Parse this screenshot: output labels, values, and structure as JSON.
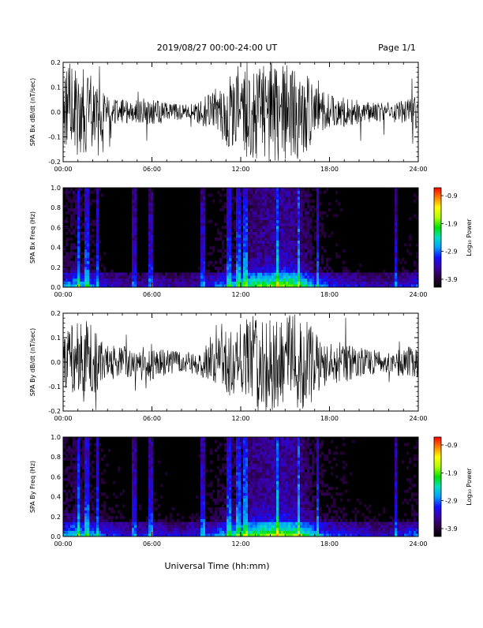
{
  "header": {
    "date_range": "2019/08/27  00:00-24:00 UT",
    "page": "Page 1/1"
  },
  "x_axis_title": "Universal Time (hh:mm)",
  "colors": {
    "trace": "#000000",
    "spectrogram_background": "#000000",
    "colorbar_stops": [
      "#000000",
      "#2a0040",
      "#3a00a8",
      "#1010ff",
      "#00a0ff",
      "#00e0c0",
      "#00e000",
      "#b0ff00",
      "#ffff00",
      "#ff8000",
      "#ff0000"
    ]
  },
  "chart_data": [
    {
      "type": "line",
      "ylabel": "SPA Bx dB/dt (nT/sec)",
      "ylim": [
        -0.2,
        0.2
      ],
      "yticks": [
        "0.2",
        "0.1",
        "0.0",
        "-0.1",
        "-0.2"
      ],
      "xlim": [
        "00:00",
        "24:00"
      ],
      "xticks": [
        "00:00",
        "06:00",
        "12:00",
        "18:00",
        "24:00"
      ],
      "x_hours": [
        0,
        1,
        2,
        3,
        4,
        5,
        6,
        7,
        8,
        9,
        10,
        11,
        12,
        13,
        14,
        15,
        16,
        17,
        18,
        19,
        20,
        21,
        22,
        23,
        24
      ],
      "amplitude_envelope": [
        0.2,
        0.2,
        0.14,
        0.06,
        0.05,
        0.04,
        0.06,
        0.04,
        0.03,
        0.04,
        0.08,
        0.13,
        0.2,
        0.2,
        0.2,
        0.2,
        0.2,
        0.12,
        0.07,
        0.06,
        0.05,
        0.04,
        0.04,
        0.05,
        0.07
      ],
      "series": [
        {
          "values": "dB/dt time series, clipped at ±0.2"
        }
      ]
    },
    {
      "type": "heatmap",
      "ylabel": "SPA Bx Freq (Hz)",
      "ylim": [
        0.0,
        1.0
      ],
      "yticks": [
        "1.0",
        "0.8",
        "0.6",
        "0.4",
        "0.2",
        "0.0"
      ],
      "xlim": [
        "00:00",
        "24:00"
      ],
      "xticks": [
        "00:00",
        "06:00",
        "12:00",
        "18:00",
        "24:00"
      ],
      "colorbar": {
        "label": "Log₁₀ Power",
        "ticks": [
          "-0.9",
          "-1.9",
          "-2.9",
          "-3.9"
        ],
        "range": [
          -3.9,
          -0.9
        ]
      },
      "x_hours": [
        0,
        1,
        2,
        3,
        4,
        5,
        6,
        7,
        8,
        9,
        10,
        11,
        12,
        13,
        14,
        15,
        16,
        17,
        18,
        19,
        20,
        21,
        22,
        23,
        24
      ],
      "low_freq_log_power": [
        -2.6,
        -2.4,
        -2.7,
        -3.1,
        -3.2,
        -3.3,
        -3.1,
        -3.2,
        -3.3,
        -3.2,
        -2.9,
        -2.6,
        -2.3,
        -1.9,
        -1.8,
        -1.6,
        -1.9,
        -2.6,
        -2.9,
        -3.0,
        -3.1,
        -3.2,
        -3.2,
        -3.0,
        -2.8
      ]
    },
    {
      "type": "line",
      "ylabel": "SPA By dB/dt (nT/sec)",
      "ylim": [
        -0.2,
        0.2
      ],
      "yticks": [
        "0.2",
        "0.1",
        "0.0",
        "-0.1",
        "-0.2"
      ],
      "xlim": [
        "00:00",
        "24:00"
      ],
      "xticks": [
        "00:00",
        "06:00",
        "12:00",
        "18:00",
        "24:00"
      ],
      "x_hours": [
        0,
        1,
        2,
        3,
        4,
        5,
        6,
        7,
        8,
        9,
        10,
        11,
        12,
        13,
        14,
        15,
        16,
        17,
        18,
        19,
        20,
        21,
        22,
        23,
        24
      ],
      "amplitude_envelope": [
        0.1,
        0.2,
        0.15,
        0.07,
        0.07,
        0.05,
        0.08,
        0.05,
        0.04,
        0.05,
        0.08,
        0.13,
        0.16,
        0.2,
        0.2,
        0.2,
        0.2,
        0.13,
        0.09,
        0.08,
        0.06,
        0.05,
        0.05,
        0.06,
        0.07
      ],
      "series": [
        {
          "values": "dB/dt time series, clipped at ±0.2"
        }
      ]
    },
    {
      "type": "heatmap",
      "ylabel": "SPA By Freq (Hz)",
      "ylim": [
        0.0,
        1.0
      ],
      "yticks": [
        "1.0",
        "0.8",
        "0.6",
        "0.4",
        "0.2",
        "0.0"
      ],
      "xlim": [
        "00:00",
        "24:00"
      ],
      "xticks": [
        "00:00",
        "06:00",
        "12:00",
        "18:00",
        "24:00"
      ],
      "colorbar": {
        "label": "Log₁₀ Power",
        "ticks": [
          "-0.9",
          "-1.9",
          "-2.9",
          "-3.9"
        ],
        "range": [
          -3.9,
          -0.9
        ]
      },
      "x_hours": [
        0,
        1,
        2,
        3,
        4,
        5,
        6,
        7,
        8,
        9,
        10,
        11,
        12,
        13,
        14,
        15,
        16,
        17,
        18,
        19,
        20,
        21,
        22,
        23,
        24
      ],
      "low_freq_log_power": [
        -2.5,
        -2.3,
        -2.6,
        -2.9,
        -3.0,
        -3.1,
        -2.9,
        -3.0,
        -3.1,
        -3.0,
        -2.8,
        -2.5,
        -2.2,
        -1.8,
        -1.7,
        -1.6,
        -1.8,
        -2.5,
        -2.8,
        -2.9,
        -3.0,
        -3.1,
        -3.1,
        -2.9,
        -2.7
      ]
    }
  ]
}
